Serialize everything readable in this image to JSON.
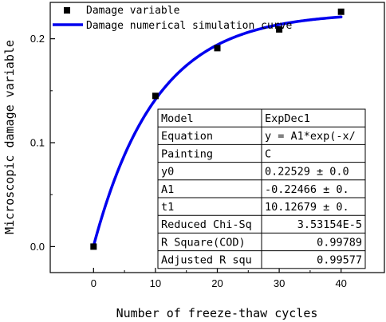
{
  "chart_data": {
    "type": "scatter",
    "xlabel": "Number of freeze-thaw cycles",
    "ylabel": "Microscopic damage variable",
    "xlim": [
      -7,
      47
    ],
    "ylim": [
      -0.025,
      0.235
    ],
    "xticks": [
      0,
      10,
      20,
      30,
      40
    ],
    "yticks": [
      0.0,
      0.1,
      0.2
    ],
    "ytick_labels": [
      "0.0",
      "0.1",
      "0.2"
    ],
    "grid": false,
    "legend_position": "top-left",
    "series": [
      {
        "name": "Damage variable",
        "kind": "scatter",
        "marker": "square",
        "color": "#000000",
        "x": [
          0,
          10,
          20,
          30,
          40
        ],
        "y": [
          0.0,
          0.145,
          0.191,
          0.209,
          0.226
        ]
      },
      {
        "name": "Damage numerical simulation curve",
        "kind": "line",
        "color": "#0000ee",
        "model": "y = y0 + A1*exp(-x/t1)",
        "params": {
          "y0": 0.22529,
          "A1": -0.22466,
          "t1": 10.12679
        },
        "x_range": [
          0,
          40
        ]
      }
    ],
    "fit_table": [
      [
        "Model",
        "ExpDec1"
      ],
      [
        "Equation",
        "y = A1*exp(-x/"
      ],
      [
        "Painting",
        "C"
      ],
      [
        "y0",
        "0.22529 ± 0.0"
      ],
      [
        "A1",
        "-0.22466 ± 0."
      ],
      [
        "t1",
        "10.12679 ± 0."
      ],
      [
        "Reduced Chi-Sq",
        "3.53154E-5"
      ],
      [
        "R Square(COD)",
        "0.99789"
      ],
      [
        "Adjusted R squ",
        "0.99577"
      ]
    ]
  }
}
